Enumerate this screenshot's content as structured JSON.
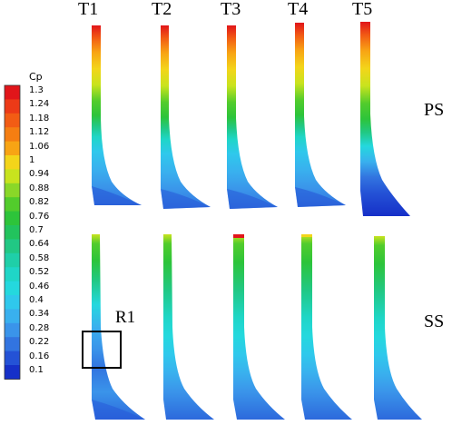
{
  "columns": [
    "T1",
    "T2",
    "T3",
    "T4",
    "T5"
  ],
  "rows": [
    "PS",
    "SS"
  ],
  "region_label": "R1",
  "legend": {
    "title": "Cp",
    "values": [
      "1.3",
      "1.24",
      "1.18",
      "1.12",
      "1.06",
      "1",
      "0.94",
      "0.88",
      "0.82",
      "0.76",
      "0.7",
      "0.64",
      "0.58",
      "0.52",
      "0.46",
      "0.4",
      "0.34",
      "0.28",
      "0.22",
      "0.16",
      "0.1"
    ]
  },
  "colors": {
    "cp_1.3": "#e1151a",
    "cp_1.24": "#ec3a17",
    "cp_1.18": "#f25c14",
    "cp_1.12": "#f57e12",
    "cp_1.06": "#f8a414",
    "cp_1": "#f3d51a",
    "cp_0.94": "#c8e31e",
    "cp_0.88": "#8ad728",
    "cp_0.82": "#52cc2c",
    "cp_0.76": "#2dc43a",
    "cp_0.7": "#22c35d",
    "cp_0.64": "#21c884",
    "cp_0.58": "#1fcfa8",
    "cp_0.52": "#1fd6c7",
    "cp_0.46": "#24d8de",
    "cp_0.4": "#2fc8ec",
    "cp_0.34": "#39b0ee",
    "cp_0.28": "#3a94ea",
    "cp_0.22": "#3274e0",
    "cp_0.16": "#2452d6",
    "cp_0.1": "#1630c8"
  }
}
